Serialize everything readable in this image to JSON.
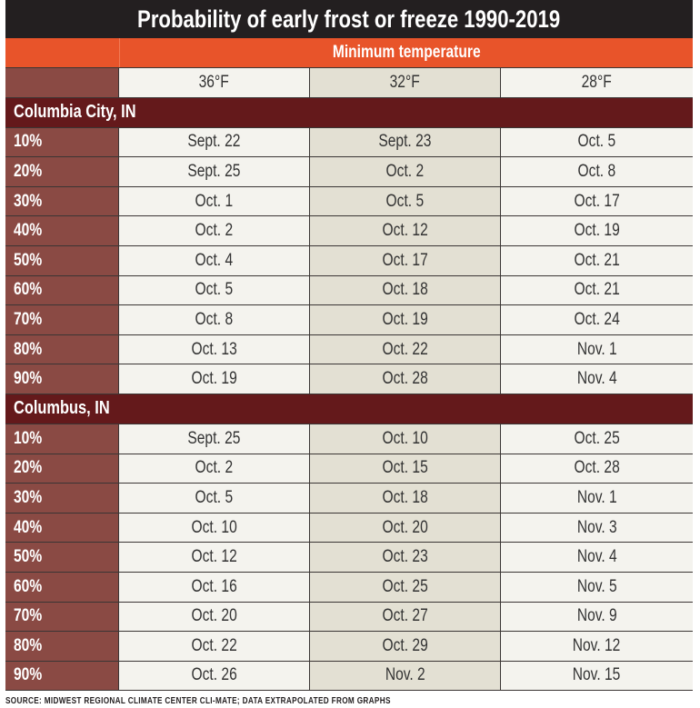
{
  "title": "Probability of early frost or freeze 1990-2019",
  "colors": {
    "title_bg": "#231f20",
    "header_orange": "#e8542a",
    "label_column": "#8a4a44",
    "section_header": "#64191b",
    "cell": "#f4f3ee",
    "highlight_column": "#e3e0d3"
  },
  "chart_data": {
    "type": "table",
    "title": "Probability of early frost or freeze 1990-2019",
    "column_group_label": "Minimum temperature",
    "columns": [
      "36°F",
      "32°F",
      "28°F"
    ],
    "sections": [
      {
        "name": "Columbia City, IN",
        "rows": [
          {
            "label": "10%",
            "values": [
              "Sept. 22",
              "Sept. 23",
              "Oct. 5"
            ]
          },
          {
            "label": "20%",
            "values": [
              "Sept. 25",
              "Oct. 2",
              "Oct. 8"
            ]
          },
          {
            "label": "30%",
            "values": [
              "Oct. 1",
              "Oct. 5",
              "Oct. 17"
            ]
          },
          {
            "label": "40%",
            "values": [
              "Oct. 2",
              "Oct. 12",
              "Oct. 19"
            ]
          },
          {
            "label": "50%",
            "values": [
              "Oct. 4",
              "Oct. 17",
              "Oct. 21"
            ]
          },
          {
            "label": "60%",
            "values": [
              "Oct. 5",
              "Oct. 18",
              "Oct. 21"
            ]
          },
          {
            "label": "70%",
            "values": [
              "Oct. 8",
              "Oct. 19",
              "Oct. 24"
            ]
          },
          {
            "label": "80%",
            "values": [
              "Oct. 13",
              "Oct. 22",
              "Nov. 1"
            ]
          },
          {
            "label": "90%",
            "values": [
              "Oct. 19",
              "Oct. 28",
              "Nov. 4"
            ]
          }
        ]
      },
      {
        "name": "Columbus, IN",
        "rows": [
          {
            "label": "10%",
            "values": [
              "Sept. 25",
              "Oct. 10",
              "Oct. 25"
            ]
          },
          {
            "label": "20%",
            "values": [
              "Oct. 2",
              "Oct. 15",
              "Oct. 28"
            ]
          },
          {
            "label": "30%",
            "values": [
              "Oct. 5",
              "Oct. 18",
              "Nov. 1"
            ]
          },
          {
            "label": "40%",
            "values": [
              "Oct. 10",
              "Oct. 20",
              "Nov. 3"
            ]
          },
          {
            "label": "50%",
            "values": [
              "Oct. 12",
              "Oct. 23",
              "Nov. 4"
            ]
          },
          {
            "label": "60%",
            "values": [
              "Oct. 16",
              "Oct. 25",
              "Nov. 5"
            ]
          },
          {
            "label": "70%",
            "values": [
              "Oct. 20",
              "Oct. 27",
              "Nov. 9"
            ]
          },
          {
            "label": "80%",
            "values": [
              "Oct. 22",
              "Oct. 29",
              "Nov. 12"
            ]
          },
          {
            "label": "90%",
            "values": [
              "Oct. 26",
              "Nov. 2",
              "Nov. 15"
            ]
          }
        ]
      }
    ],
    "source": "SOURCE: MIDWEST REGIONAL CLIMATE CENTER CLI-MATE; DATA EXTRAPOLATED FROM GRAPHS"
  }
}
